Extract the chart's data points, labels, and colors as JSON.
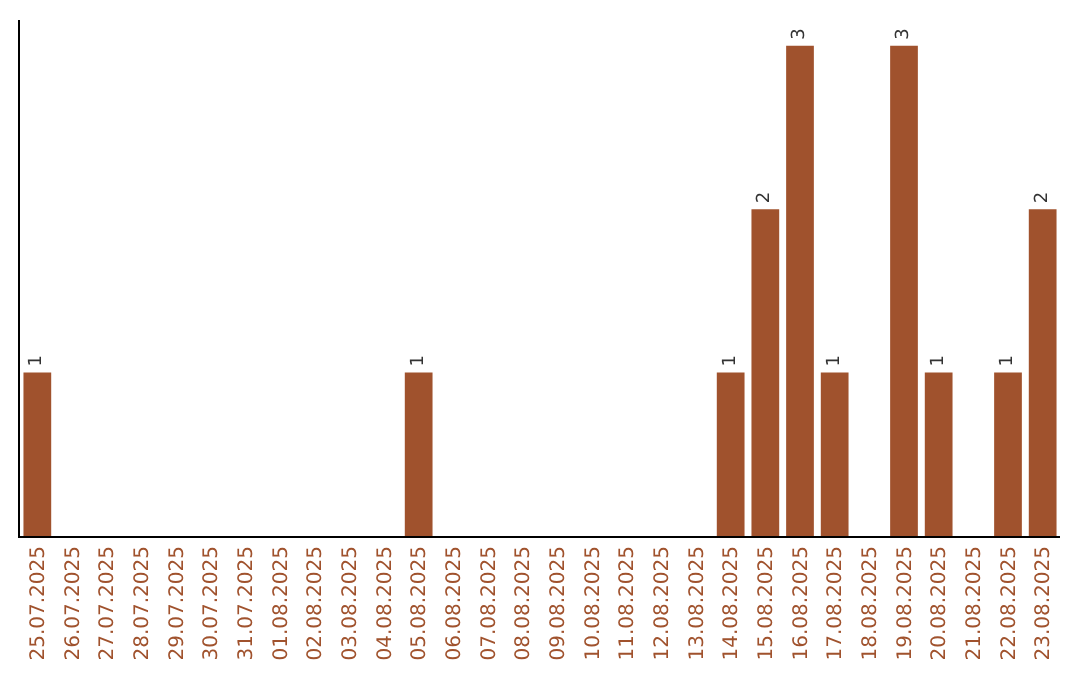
{
  "chart_data": {
    "type": "bar",
    "categories": [
      "25.07.2025",
      "26.07.2025",
      "27.07.2025",
      "28.07.2025",
      "29.07.2025",
      "30.07.2025",
      "31.07.2025",
      "01.08.2025",
      "02.08.2025",
      "03.08.2025",
      "04.08.2025",
      "05.08.2025",
      "06.08.2025",
      "07.08.2025",
      "08.08.2025",
      "09.08.2025",
      "10.08.2025",
      "11.08.2025",
      "12.08.2025",
      "13.08.2025",
      "14.08.2025",
      "15.08.2025",
      "16.08.2025",
      "17.08.2025",
      "18.08.2025",
      "19.08.2025",
      "20.08.2025",
      "21.08.2025",
      "22.08.2025",
      "23.08.2025"
    ],
    "values": [
      1,
      0,
      0,
      0,
      0,
      0,
      0,
      0,
      0,
      0,
      0,
      1,
      0,
      0,
      0,
      0,
      0,
      0,
      0,
      0,
      1,
      2,
      3,
      1,
      0,
      3,
      1,
      0,
      1,
      2
    ],
    "value_labels": [
      "1",
      null,
      null,
      null,
      null,
      null,
      null,
      null,
      null,
      null,
      null,
      "1",
      null,
      null,
      null,
      null,
      null,
      null,
      null,
      null,
      "1",
      "2",
      "3",
      "1",
      null,
      "3",
      "1",
      null,
      "1",
      "2"
    ],
    "color": "#a0522d"
  }
}
